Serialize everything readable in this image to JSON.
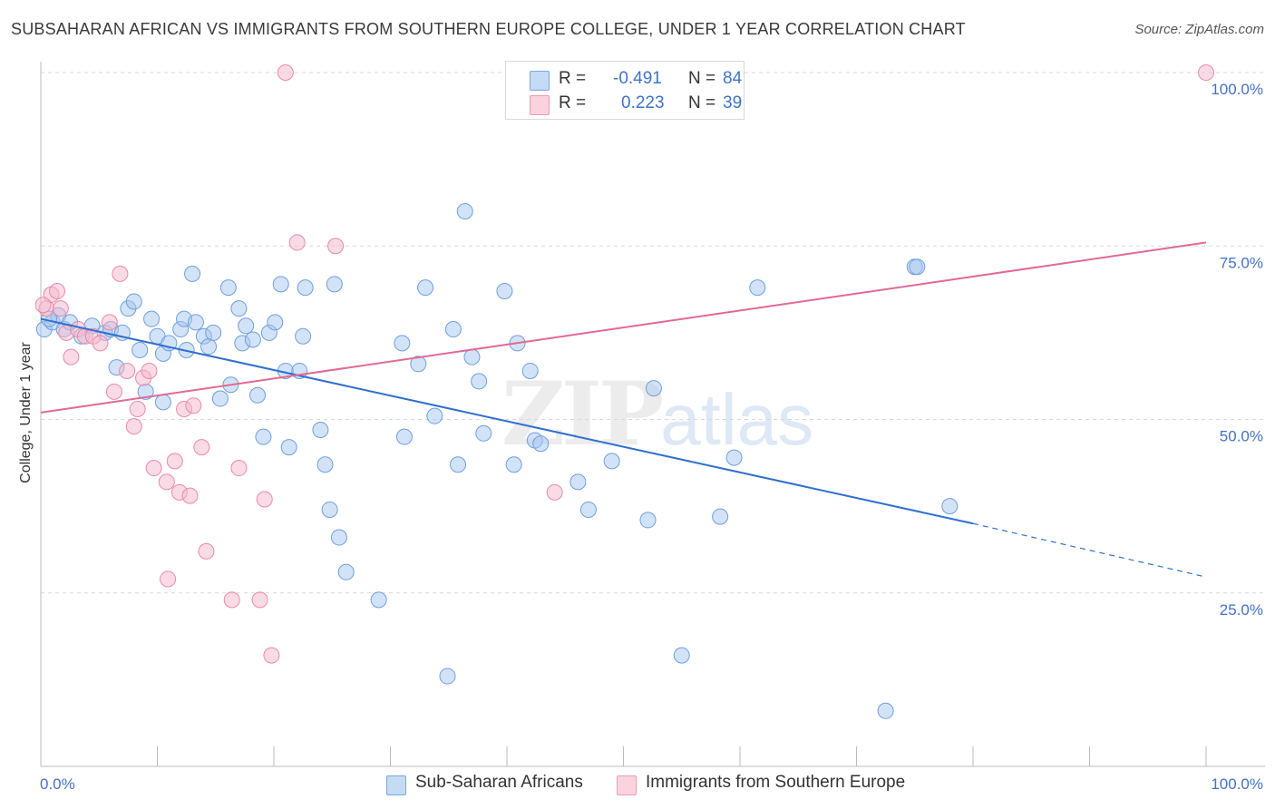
{
  "title": "SUBSAHARAN AFRICAN VS IMMIGRANTS FROM SOUTHERN EUROPE COLLEGE, UNDER 1 YEAR CORRELATION CHART",
  "source": "Source: ZipAtlas.com",
  "watermark": {
    "zip": "ZIP",
    "atlas": "atlas"
  },
  "legend_top": {
    "rows": [
      {
        "r_label": "R =",
        "r_value": "-0.491",
        "n_label": "N =",
        "n_value": "84",
        "color": "#a8c8f0"
      },
      {
        "r_label": "R =",
        "r_value": "0.223",
        "n_label": "N =",
        "n_value": "39",
        "color": "#f5b8cc"
      }
    ]
  },
  "legend_bottom": [
    {
      "label": "Sub-Saharan Africans",
      "color": "#a8c8f0"
    },
    {
      "label": "Immigrants from Southern Europe",
      "color": "#f5b8cc"
    }
  ],
  "chart_data": {
    "type": "scatter",
    "title": "SUBSAHARAN AFRICAN VS IMMIGRANTS FROM SOUTHERN EUROPE COLLEGE, UNDER 1 YEAR CORRELATION CHART",
    "ylabel": "College, Under 1 year",
    "xlabel": "",
    "xlim": [
      0,
      100
    ],
    "ylim": [
      0,
      100
    ],
    "x_tick_labels": [
      "0.0%",
      "100.0%"
    ],
    "y_tick_labels": [
      {
        "value": 25,
        "label": "25.0%"
      },
      {
        "value": 50,
        "label": "50.0%"
      },
      {
        "value": 75,
        "label": "75.0%"
      },
      {
        "value": 100,
        "label": "100.0%"
      }
    ],
    "grid": "horizontal dashed",
    "legend_position": "top-center",
    "series": [
      {
        "name": "Sub-Saharan Africans",
        "color": "#a8c8f0",
        "stroke": "#6f9fdc",
        "line_color": "#2f6fd0",
        "trend": {
          "x0": 0,
          "y0": 64.5,
          "x1": 80,
          "y1": 35.0,
          "dash_to_x": 100,
          "dash_to_y": 27.3
        },
        "points": [
          [
            0.3,
            63
          ],
          [
            1.0,
            64
          ],
          [
            1.5,
            65
          ],
          [
            2.0,
            63
          ],
          [
            2.5,
            64
          ],
          [
            3.5,
            62
          ],
          [
            4.4,
            63.5
          ],
          [
            5.5,
            62.5
          ],
          [
            6.0,
            63
          ],
          [
            7.0,
            62.5
          ],
          [
            6.5,
            57.5
          ],
          [
            7.5,
            66
          ],
          [
            8.0,
            67
          ],
          [
            8.5,
            60
          ],
          [
            9.0,
            54
          ],
          [
            9.5,
            64.5
          ],
          [
            10.0,
            62
          ],
          [
            10.5,
            59.5
          ],
          [
            10.5,
            52.5
          ],
          [
            11.0,
            61
          ],
          [
            12.0,
            63
          ],
          [
            12.3,
            64.5
          ],
          [
            12.5,
            60
          ],
          [
            13.0,
            71
          ],
          [
            13.3,
            64
          ],
          [
            14.0,
            62
          ],
          [
            14.4,
            60.5
          ],
          [
            14.8,
            62.5
          ],
          [
            15.4,
            53
          ],
          [
            16.1,
            69
          ],
          [
            16.3,
            55
          ],
          [
            17.0,
            66
          ],
          [
            17.3,
            61
          ],
          [
            17.6,
            63.5
          ],
          [
            18.2,
            61.5
          ],
          [
            18.6,
            53.5
          ],
          [
            19.1,
            47.5
          ],
          [
            19.6,
            62.5
          ],
          [
            20.1,
            64
          ],
          [
            20.6,
            69.5
          ],
          [
            21.0,
            57
          ],
          [
            21.3,
            46
          ],
          [
            22.2,
            57
          ],
          [
            22.5,
            62
          ],
          [
            22.7,
            69
          ],
          [
            24.0,
            48.5
          ],
          [
            24.4,
            43.5
          ],
          [
            24.8,
            37
          ],
          [
            25.2,
            69.5
          ],
          [
            25.6,
            33
          ],
          [
            26.2,
            28
          ],
          [
            29.0,
            24
          ],
          [
            31.0,
            61
          ],
          [
            31.2,
            47.5
          ],
          [
            32.4,
            58
          ],
          [
            33.0,
            69
          ],
          [
            33.8,
            50.5
          ],
          [
            34.9,
            13
          ],
          [
            35.4,
            63
          ],
          [
            35.8,
            43.5
          ],
          [
            36.4,
            80
          ],
          [
            37.0,
            59
          ],
          [
            37.6,
            55.5
          ],
          [
            38.0,
            48
          ],
          [
            39.8,
            68.5
          ],
          [
            40.6,
            43.5
          ],
          [
            40.9,
            61
          ],
          [
            42.0,
            57
          ],
          [
            42.4,
            47
          ],
          [
            42.9,
            46.5
          ],
          [
            46.1,
            41
          ],
          [
            47.0,
            37
          ],
          [
            49.0,
            44
          ],
          [
            52.1,
            35.5
          ],
          [
            52.6,
            54.5
          ],
          [
            55.0,
            16
          ],
          [
            58.3,
            36
          ],
          [
            59.5,
            44.5
          ],
          [
            61.5,
            69
          ],
          [
            75.0,
            72
          ],
          [
            72.5,
            8
          ],
          [
            75.2,
            72
          ],
          [
            78.0,
            37.5
          ],
          [
            0.7,
            64.5
          ]
        ]
      },
      {
        "name": "Immigrants from Southern Europe",
        "color": "#f5b8cc",
        "stroke": "#e98aaa",
        "line_color": "#e06a92",
        "trend": {
          "x0": 0,
          "y0": 51.0,
          "x1": 100,
          "y1": 75.5
        },
        "points": [
          [
            0.5,
            66
          ],
          [
            0.9,
            68
          ],
          [
            1.4,
            68.5
          ],
          [
            1.7,
            66
          ],
          [
            2.2,
            62.5
          ],
          [
            2.6,
            59
          ],
          [
            3.2,
            63
          ],
          [
            3.8,
            62
          ],
          [
            4.5,
            62
          ],
          [
            5.1,
            61
          ],
          [
            5.9,
            64
          ],
          [
            6.3,
            54
          ],
          [
            6.8,
            71
          ],
          [
            7.4,
            57
          ],
          [
            8.0,
            49
          ],
          [
            8.3,
            51.5
          ],
          [
            8.8,
            56
          ],
          [
            9.3,
            57
          ],
          [
            9.7,
            43
          ],
          [
            10.8,
            41
          ],
          [
            10.9,
            27
          ],
          [
            11.5,
            44
          ],
          [
            11.9,
            39.5
          ],
          [
            12.3,
            51.5
          ],
          [
            12.8,
            39
          ],
          [
            13.1,
            52
          ],
          [
            13.8,
            46
          ],
          [
            14.2,
            31
          ],
          [
            16.4,
            24
          ],
          [
            17.0,
            43
          ],
          [
            18.8,
            24
          ],
          [
            19.2,
            38.5
          ],
          [
            19.8,
            16
          ],
          [
            21.0,
            100
          ],
          [
            22.0,
            75.5
          ],
          [
            25.3,
            75
          ],
          [
            44.1,
            39.5
          ],
          [
            100,
            100
          ],
          [
            0.2,
            66.5
          ]
        ]
      }
    ]
  }
}
